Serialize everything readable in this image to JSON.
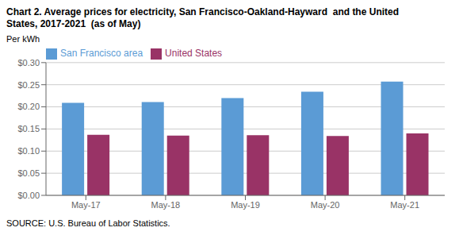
{
  "chart_data": {
    "type": "bar",
    "title": "Chart 2. Average prices for electricity, San Francisco-Oakland-Hayward  and the United\nStates, 2017-2021  (as of May)",
    "y_label": "Per kWh",
    "annotations": [
      "SOURCE: U.S. Bureau of Labor Statistics."
    ],
    "categories": [
      "May-17",
      "May-18",
      "May-19",
      "May-20",
      "May-21"
    ],
    "series": [
      {
        "name": "San Francisco area",
        "color": "#5B9BD5",
        "values": [
          0.209,
          0.211,
          0.22,
          0.234,
          0.257
        ]
      },
      {
        "name": "United States",
        "color": "#993366",
        "values": [
          0.137,
          0.135,
          0.136,
          0.134,
          0.14
        ]
      }
    ],
    "ylim": [
      0,
      0.3
    ],
    "yticks": [
      {
        "value": 0.0,
        "label": "$0.00"
      },
      {
        "value": 0.05,
        "label": "$0.05"
      },
      {
        "value": 0.1,
        "label": "$0.10"
      },
      {
        "value": 0.15,
        "label": "$0.15"
      },
      {
        "value": 0.2,
        "label": "$0.20"
      },
      {
        "value": 0.25,
        "label": "$0.25"
      },
      {
        "value": 0.3,
        "label": "$0.30"
      }
    ],
    "grid": true,
    "legend": "top left"
  }
}
